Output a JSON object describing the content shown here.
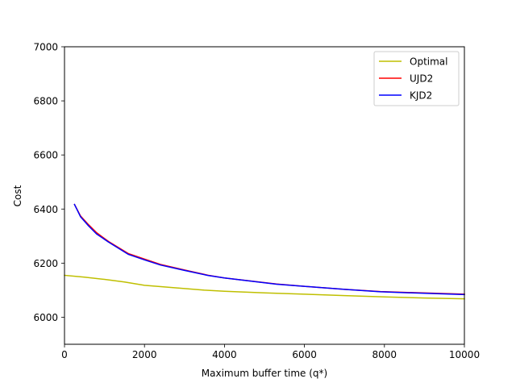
{
  "chart_data": {
    "type": "line",
    "title": "",
    "xlabel": "Maximum buffer time (q*)",
    "ylabel": "Cost",
    "xlim": [
      0,
      10000
    ],
    "ylim": [
      5900,
      7000
    ],
    "xticks": [
      "0",
      "2000",
      "4000",
      "6000",
      "8000",
      "10000"
    ],
    "yticks": [
      "6000",
      "6200",
      "6400",
      "6600",
      "6800",
      "7000"
    ],
    "grid": false,
    "legend_position": "top-right",
    "series": [
      {
        "name": "Optimal",
        "color": "#bfbf00",
        "x": [
          0,
          500,
          1000,
          1500,
          2000,
          2500,
          3000,
          3500,
          4000,
          5000,
          6000,
          7000,
          8000,
          9000,
          10000
        ],
        "y": [
          6155,
          6148,
          6140,
          6130,
          6118,
          6112,
          6106,
          6100,
          6096,
          6090,
          6085,
          6080,
          6075,
          6071,
          6068
        ]
      },
      {
        "name": "UJD2",
        "color": "#ff0000",
        "x": [
          250,
          400,
          600,
          800,
          1100,
          1600,
          2000,
          2400,
          3000,
          3600,
          4000,
          5300,
          6200,
          7000,
          7900,
          8700,
          10000
        ],
        "y": [
          6417,
          6375,
          6342,
          6313,
          6280,
          6235,
          6215,
          6195,
          6175,
          6155,
          6145,
          6123,
          6112,
          6103,
          6095,
          6091,
          6085
        ]
      },
      {
        "name": "KJD2",
        "color": "#0000ff",
        "x": [
          250,
          400,
          600,
          800,
          1100,
          1600,
          2000,
          2400,
          3000,
          3600,
          4000,
          5300,
          6200,
          7000,
          7900,
          8700,
          10000
        ],
        "y": [
          6417,
          6372,
          6338,
          6308,
          6278,
          6232,
          6212,
          6193,
          6173,
          6154,
          6145,
          6122,
          6112,
          6103,
          6094,
          6090,
          6084
        ]
      }
    ]
  }
}
